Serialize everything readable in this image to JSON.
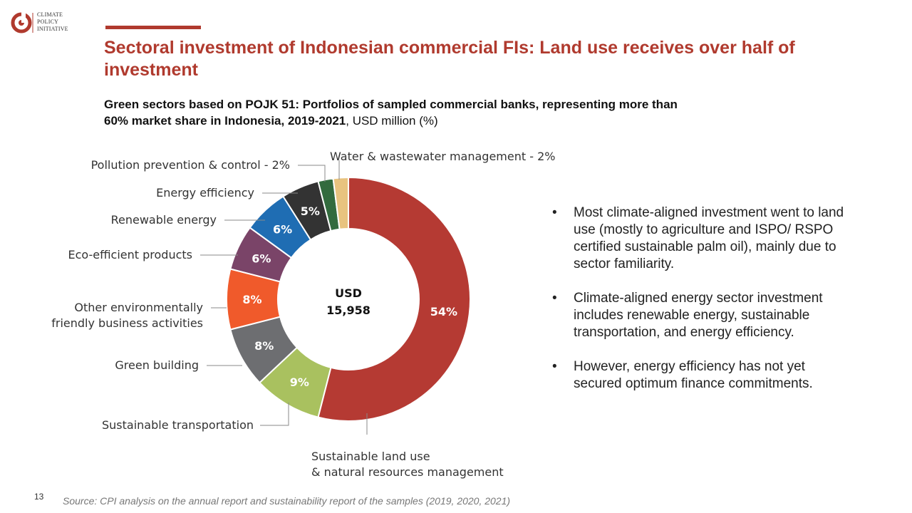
{
  "logo": {
    "icon": "cpi-logo-icon",
    "lines": [
      "CLIMATE",
      "POLICY",
      "INITIATIVE"
    ],
    "color": "#b03a2e"
  },
  "title": "Sectoral investment of Indonesian commercial FIs: Land use receives over half of investment",
  "subtitle": {
    "bold": "Green sectors based on POJK 51: Portfolios of sampled commercial banks, representing more than 60% market share in Indonesia, 2019-2021",
    "normal": ", USD million (%)"
  },
  "chart_data": {
    "type": "pie",
    "variant": "donut",
    "center_label": [
      "USD",
      "15,958"
    ],
    "slices": [
      {
        "label": "Sustainable land use\n& natural resources management",
        "value": 54,
        "display": "54%",
        "color": "#b53a33"
      },
      {
        "label": "Sustainable transportation",
        "value": 9,
        "display": "9%",
        "color": "#a9c15f"
      },
      {
        "label": "Green building",
        "value": 8,
        "display": "8%",
        "color": "#6d6e71"
      },
      {
        "label": "Other environmentally\nfriendly business activities",
        "value": 8,
        "display": "8%",
        "color": "#f05a2b"
      },
      {
        "label": "Eco-efficient products",
        "value": 6,
        "display": "6%",
        "color": "#7a4468"
      },
      {
        "label": "Renewable energy",
        "value": 6,
        "display": "6%",
        "color": "#1f6db3"
      },
      {
        "label": "Energy efficiency",
        "value": 5,
        "display": "5%",
        "color": "#333333"
      },
      {
        "label": "Pollution prevention & control - 2%",
        "value": 2,
        "display": "",
        "color": "#336b3e"
      },
      {
        "label": "Water & wastewater management - 2%",
        "value": 2,
        "display": "",
        "color": "#e8c37f"
      }
    ]
  },
  "bullets": [
    "Most climate-aligned investment went to land use (mostly to agriculture and ISPO/ RSPO certified sustainable palm oil), mainly due to sector familiarity.",
    "Climate-aligned energy sector investment includes renewable energy, sustainable transportation, and energy efficiency.",
    "However, energy efficiency has not yet secured optimum finance commitments."
  ],
  "bullet_symbol": "•",
  "page_number": "13",
  "source": "Source: CPI analysis on the annual report and sustainability report of the samples (2019, 2020, 2021)"
}
